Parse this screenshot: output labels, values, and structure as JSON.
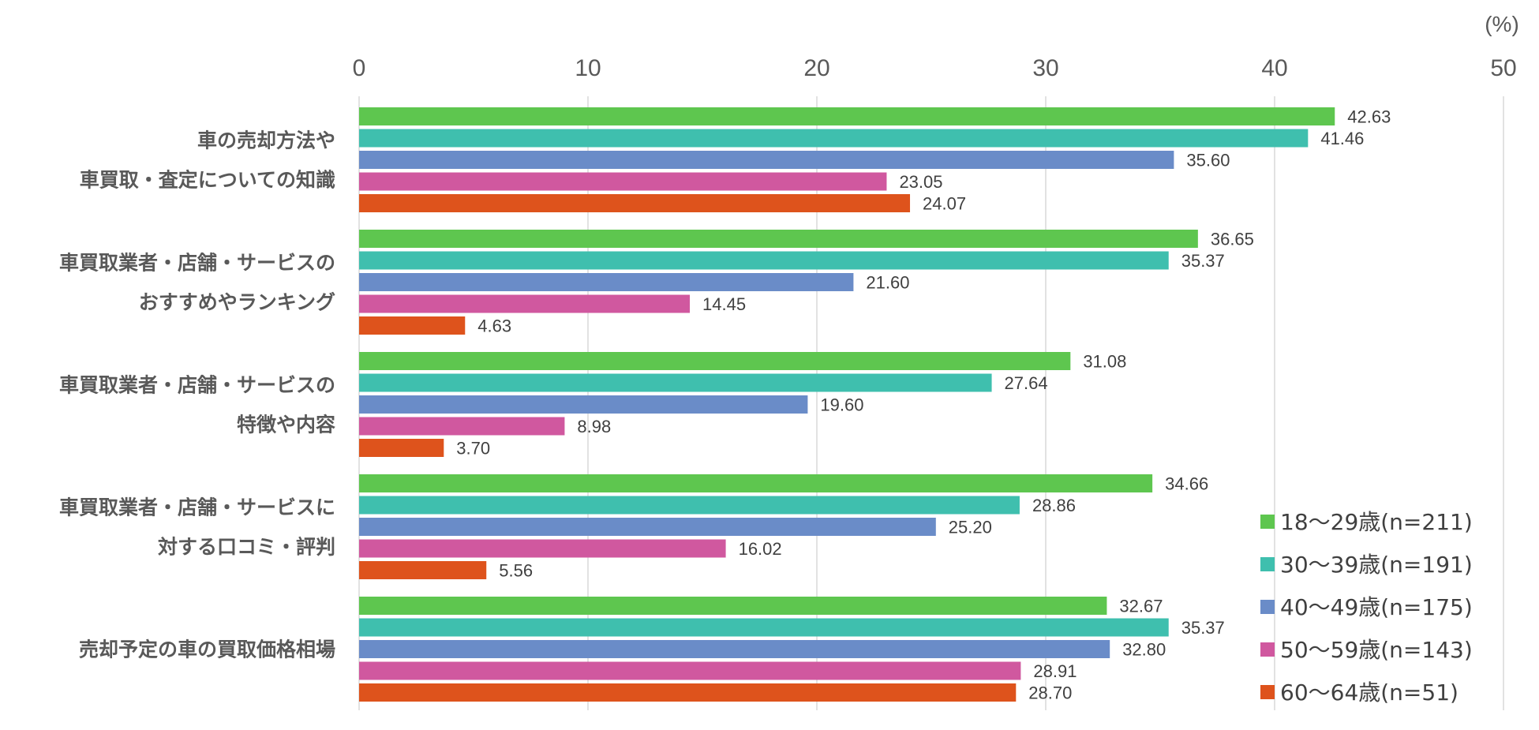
{
  "chart_data": {
    "type": "bar",
    "orientation": "horizontal",
    "unit_label": "(%)",
    "xlim": [
      0,
      50
    ],
    "xticks": [
      "0",
      "10",
      "20",
      "30",
      "40",
      "50"
    ],
    "grid": true,
    "legend_position": "bottom-right",
    "categories": [
      [
        "車の売却方法や",
        "車買取・査定についての知識"
      ],
      [
        "車買取業者・店舗・サービスの",
        "おすすめやランキング"
      ],
      [
        "車買取業者・店舗・サービスの",
        "特徴や内容"
      ],
      [
        "車買取業者・店舗・サービスに",
        "対する口コミ・評判"
      ],
      [
        "売却予定の車の買取価格相場"
      ]
    ],
    "series": [
      {
        "name": "18〜29歳(n=211)",
        "color": "#5ec64f",
        "values": [
          42.63,
          36.65,
          31.08,
          34.66,
          32.67
        ],
        "labels": [
          "42.63",
          "36.65",
          "31.08",
          "34.66",
          "32.67"
        ]
      },
      {
        "name": "30〜39歳(n=191)",
        "color": "#3fbfae",
        "values": [
          41.46,
          35.37,
          27.64,
          28.86,
          35.37
        ],
        "labels": [
          "41.46",
          "35.37",
          "27.64",
          "28.86",
          "35.37"
        ]
      },
      {
        "name": "40〜49歳(n=175)",
        "color": "#6a8cc8",
        "values": [
          35.6,
          21.6,
          19.6,
          25.2,
          32.8
        ],
        "labels": [
          "35.60",
          "21.60",
          "19.60",
          "25.20",
          "32.80"
        ]
      },
      {
        "name": "50〜59歳(n=143)",
        "color": "#d0589f",
        "values": [
          23.05,
          14.45,
          8.98,
          16.02,
          28.91
        ],
        "labels": [
          "23.05",
          "14.45",
          "8.98",
          "16.02",
          "28.91"
        ]
      },
      {
        "name": "60〜64歳(n=51)",
        "color": "#de531c",
        "values": [
          24.07,
          4.63,
          3.7,
          5.56,
          28.7
        ],
        "labels": [
          "24.07",
          "4.63",
          "3.70",
          "5.56",
          "28.70"
        ]
      }
    ]
  }
}
